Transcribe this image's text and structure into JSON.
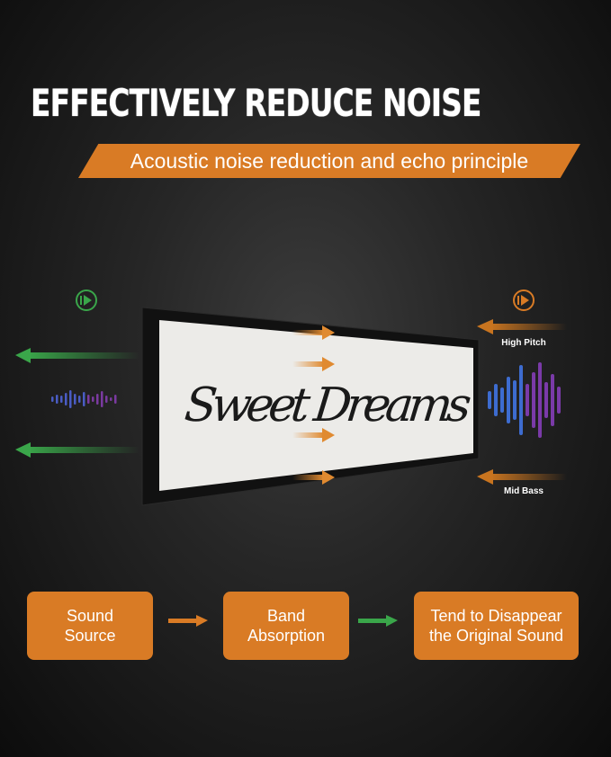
{
  "title": "EFFECTIVELY REDUCE NOISE",
  "banner": "Acoustic noise reduction and echo principle",
  "artwork_text": "Sweet Dreams",
  "labels": {
    "high": "High Pitch",
    "mid": "Mid Bass"
  },
  "steps": [
    {
      "line1": "Sound",
      "line2": "Source"
    },
    {
      "line1": "Band",
      "line2": "Absorption"
    },
    {
      "line1": "Tend to Disappear",
      "line2": "the Original Sound"
    }
  ],
  "colors": {
    "accent": "#d97b25",
    "green": "#3aa64a",
    "background": "#1c1c1c"
  },
  "icons": [
    "sound-play-icon-green",
    "sound-play-icon-orange",
    "arrow-icon",
    "waveform-icon"
  ]
}
